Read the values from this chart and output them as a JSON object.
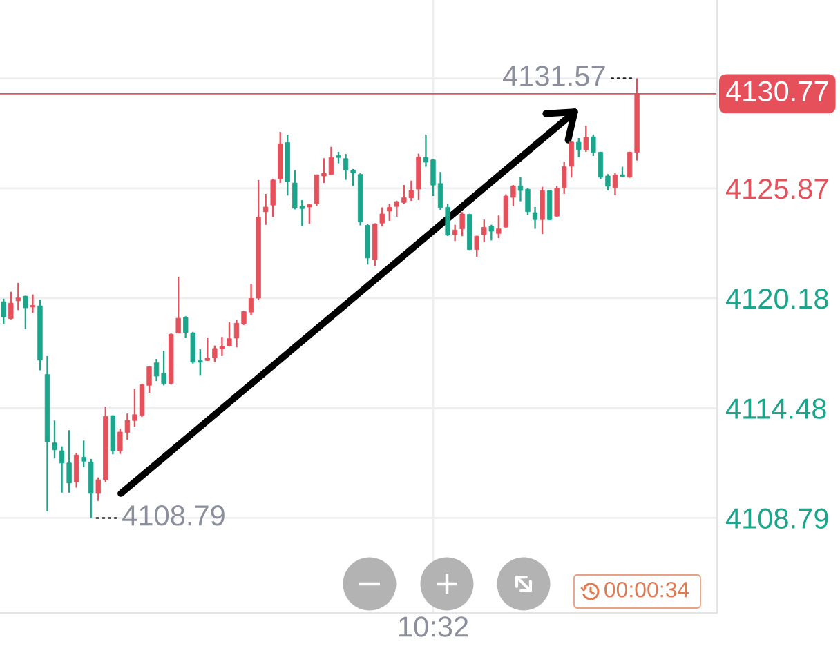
{
  "chart_data": {
    "type": "candlestick",
    "categories": [
      null,
      null,
      null,
      null,
      null,
      null,
      null,
      null,
      null,
      null,
      null,
      null,
      null,
      null,
      null,
      null,
      null,
      null,
      null,
      null,
      null,
      null,
      null,
      null,
      null,
      null,
      null,
      null,
      null,
      null,
      null,
      null,
      null,
      null,
      null,
      null,
      null,
      null,
      null,
      null,
      null,
      null,
      null,
      null,
      null,
      null,
      null,
      null,
      null,
      null,
      null,
      null,
      null,
      null,
      null,
      null,
      null,
      null,
      null,
      "10:32",
      null,
      null,
      null,
      null,
      null,
      null,
      null,
      null,
      null,
      null,
      null,
      null,
      null,
      null,
      null,
      null,
      null,
      null,
      null,
      null,
      null,
      null,
      null,
      null,
      null,
      null,
      null,
      null
    ],
    "ohlc": [
      [
        4119.99,
        4120.15,
        4118.85,
        4119.2
      ],
      [
        4119.12,
        4120.51,
        4119.08,
        4119.92
      ],
      [
        4120.04,
        4120.97,
        4119.56,
        4120.19
      ],
      [
        4120.28,
        4120.3,
        4118.58,
        4119.68
      ],
      [
        4119.72,
        4120.37,
        4119.42,
        4119.8
      ],
      [
        4119.78,
        4120.1,
        4116.44,
        4116.97
      ],
      [
        4116.22,
        4117.18,
        4109.14,
        4112.74
      ],
      [
        4112.68,
        4113.84,
        4111.87,
        4112.32
      ],
      [
        4112.27,
        4112.5,
        4110.1,
        4111.64
      ],
      [
        4111.64,
        4113.34,
        4110.1,
        4110.6
      ],
      [
        4110.66,
        4112.17,
        4110.36,
        4112.05
      ],
      [
        4111.94,
        4112.8,
        4111.41,
        4111.73
      ],
      [
        4111.69,
        4111.85,
        4108.79,
        4110.06
      ],
      [
        4110.06,
        4110.89,
        4109.67,
        4110.77
      ],
      [
        4110.77,
        4114.56,
        4110.66,
        4114.05
      ],
      [
        4114.09,
        4114.11,
        4112.09,
        4112.27
      ],
      [
        4112.27,
        4113.42,
        4112.11,
        4113.24
      ],
      [
        4113.22,
        4114.2,
        4112.84,
        4113.85
      ],
      [
        4113.84,
        4115.46,
        4113.52,
        4114.14
      ],
      [
        4114.11,
        4115.75,
        4114.02,
        4115.69
      ],
      [
        4115.66,
        4116.65,
        4115.28,
        4116.62
      ],
      [
        4116.83,
        4117.03,
        4115.88,
        4116.14
      ],
      [
        4116.28,
        4117.45,
        4115.66,
        4115.76
      ],
      [
        4115.76,
        4118.35,
        4115.7,
        4118.31
      ],
      [
        4118.37,
        4121.29,
        4118.35,
        4119.14
      ],
      [
        4119.18,
        4119.24,
        4118.13,
        4118.4
      ],
      [
        4118.38,
        4118.43,
        4116.79,
        4116.86
      ],
      [
        4116.94,
        4117.53,
        4116.16,
        4116.86
      ],
      [
        4116.95,
        4118.14,
        4116.93,
        4117.07
      ],
      [
        4117.09,
        4117.72,
        4116.86,
        4117.57
      ],
      [
        4117.57,
        4118.17,
        4117.18,
        4117.69
      ],
      [
        4117.71,
        4118.94,
        4117.67,
        4118.08
      ],
      [
        4118.11,
        4119.04,
        4117.63,
        4118.88
      ],
      [
        4118.85,
        4119.51,
        4118.79,
        4119.48
      ],
      [
        4119.46,
        4120.93,
        4119.3,
        4120.16
      ],
      [
        4120.18,
        4126.3,
        4120.07,
        4124.37
      ],
      [
        4124.66,
        4125.58,
        4123.98,
        4124.9
      ],
      [
        4125.0,
        4126.37,
        4124.39,
        4126.3
      ],
      [
        4126.37,
        4128.8,
        4126.15,
        4128.18
      ],
      [
        4128.24,
        4128.62,
        4125.5,
        4126.21
      ],
      [
        4126.15,
        4126.81,
        4124.78,
        4124.84
      ],
      [
        4124.94,
        4125.26,
        4123.93,
        4124.82
      ],
      [
        4124.9,
        4125.05,
        4124.03,
        4125.02
      ],
      [
        4125.08,
        4126.59,
        4124.96,
        4126.57
      ],
      [
        4126.51,
        4127.43,
        4126.15,
        4126.65
      ],
      [
        4126.59,
        4128.02,
        4126.57,
        4127.47
      ],
      [
        4127.56,
        4127.76,
        4127.17,
        4127.47
      ],
      [
        4127.41,
        4127.65,
        4126.31,
        4126.81
      ],
      [
        4126.81,
        4126.87,
        4126.0,
        4126.67
      ],
      [
        4126.59,
        4126.65,
        4123.95,
        4124.13
      ],
      [
        4123.95,
        4124.01,
        4121.92,
        4122.26
      ],
      [
        4122.18,
        4124.06,
        4121.86,
        4124.03
      ],
      [
        4124.07,
        4124.88,
        4123.89,
        4124.54
      ],
      [
        4124.69,
        4125.06,
        4124.19,
        4124.88
      ],
      [
        4124.93,
        4125.23,
        4124.4,
        4125.18
      ],
      [
        4125.14,
        4126.04,
        4125.06,
        4125.38
      ],
      [
        4125.38,
        4126.27,
        4125.22,
        4125.76
      ],
      [
        4125.83,
        4127.67,
        4125.26,
        4127.49
      ],
      [
        4127.47,
        4128.66,
        4126.99,
        4127.23
      ],
      [
        4127.34,
        4127.4,
        4125.47,
        4126.04
      ],
      [
        4126.12,
        4126.72,
        4124.76,
        4124.88
      ],
      [
        4124.88,
        4125.05,
        4123.4,
        4123.45
      ],
      [
        4123.47,
        4123.98,
        4123.14,
        4123.71
      ],
      [
        4123.77,
        4124.64,
        4123.39,
        4124.54
      ],
      [
        4124.52,
        4124.55,
        4122.67,
        4122.7
      ],
      [
        4122.7,
        4123.41,
        4122.32,
        4123.39
      ],
      [
        4123.47,
        4124.25,
        4123.09,
        4123.85
      ],
      [
        4123.91,
        4123.98,
        4123.17,
        4123.65
      ],
      [
        4123.53,
        4124.46,
        4123.29,
        4123.77
      ],
      [
        4123.86,
        4125.56,
        4123.83,
        4125.47
      ],
      [
        4125.4,
        4126.04,
        4124.94,
        4126.0
      ],
      [
        4126.0,
        4126.45,
        4125.2,
        4125.76
      ],
      [
        4125.82,
        4125.88,
        4124.48,
        4124.66
      ],
      [
        4124.61,
        4124.9,
        4123.77,
        4124.25
      ],
      [
        4124.25,
        4125.95,
        4123.5,
        4125.74
      ],
      [
        4125.74,
        4125.78,
        4124.22,
        4124.25
      ],
      [
        4124.43,
        4126.0,
        4124.4,
        4125.88
      ],
      [
        4125.91,
        4127.25,
        4125.58,
        4126.99
      ],
      [
        4127.02,
        4128.3,
        4126.43,
        4128.27
      ],
      [
        4128.26,
        4128.48,
        4127.47,
        4127.88
      ],
      [
        4127.86,
        4129.11,
        4127.76,
        4128.51
      ],
      [
        4128.54,
        4128.66,
        4127.55,
        4127.74
      ],
      [
        4127.74,
        4127.77,
        4126.36,
        4126.45
      ],
      [
        4126.51,
        4126.61,
        4125.76,
        4125.98
      ],
      [
        4125.91,
        4126.65,
        4125.52,
        4126.57
      ],
      [
        4126.57,
        4126.99,
        4126.45,
        4126.48
      ],
      [
        4126.45,
        4127.77,
        4126.42,
        4127.74
      ],
      [
        4127.74,
        4131.57,
        4127.31,
        4130.77
      ]
    ],
    "colors": [
      "#1ba58b",
      "#e5505a",
      "#e5505a",
      "#1ba58b",
      "#e5505a",
      "#1ba58b",
      "#1ba58b",
      "#1ba58b",
      "#1ba58b",
      "#1ba58b",
      "#e5505a",
      "#1ba58b",
      "#1ba58b",
      "#e5505a",
      "#e5505a",
      "#1ba58b",
      "#e5505a",
      "#e5505a",
      "#e5505a",
      "#e5505a",
      "#e5505a",
      "#1ba58b",
      "#1ba58b",
      "#e5505a",
      "#e5505a",
      "#1ba58b",
      "#1ba58b",
      "#1ba58b",
      "#e5505a",
      "#e5505a",
      "#e5505a",
      "#e5505a",
      "#e5505a",
      "#e5505a",
      "#e5505a",
      "#e5505a",
      "#e5505a",
      "#e5505a",
      "#e5505a",
      "#1ba58b",
      "#1ba58b",
      "#1ba58b",
      "#e5505a",
      "#e5505a",
      "#e5505a",
      "#e5505a",
      "#1ba58b",
      "#1ba58b",
      "#1ba58b",
      "#1ba58b",
      "#1ba58b",
      "#e5505a",
      "#e5505a",
      "#e5505a",
      "#e5505a",
      "#e5505a",
      "#e5505a",
      "#e5505a",
      "#1ba58b",
      "#1ba58b",
      "#1ba58b",
      "#1ba58b",
      "#e5505a",
      "#e5505a",
      "#1ba58b",
      "#e5505a",
      "#e5505a",
      "#1ba58b",
      "#e5505a",
      "#e5505a",
      "#e5505a",
      "#1ba58b",
      "#1ba58b",
      "#1ba58b",
      "#e5505a",
      "#1ba58b",
      "#e5505a",
      "#e5505a",
      "#e5505a",
      "#1ba58b",
      "#e5505a",
      "#1ba58b",
      "#1ba58b",
      "#1ba58b",
      "#e5505a",
      "#1ba58b",
      "#e5505a",
      "#e5505a"
    ],
    "ylim": [
      4103.87,
      4135.63
    ],
    "yticks": [
      4108.79,
      4114.48,
      4120.18,
      4125.87,
      {
        "value": 4131.57,
        "label": null
      }
    ],
    "grid": true,
    "ref_lines": [
      {
        "axis": "y",
        "value": 4130.77,
        "label": "4130.77",
        "color": "#e5505a"
      }
    ],
    "annotations": [
      "4131.57",
      "4108.79",
      "00:00:34"
    ]
  }
}
